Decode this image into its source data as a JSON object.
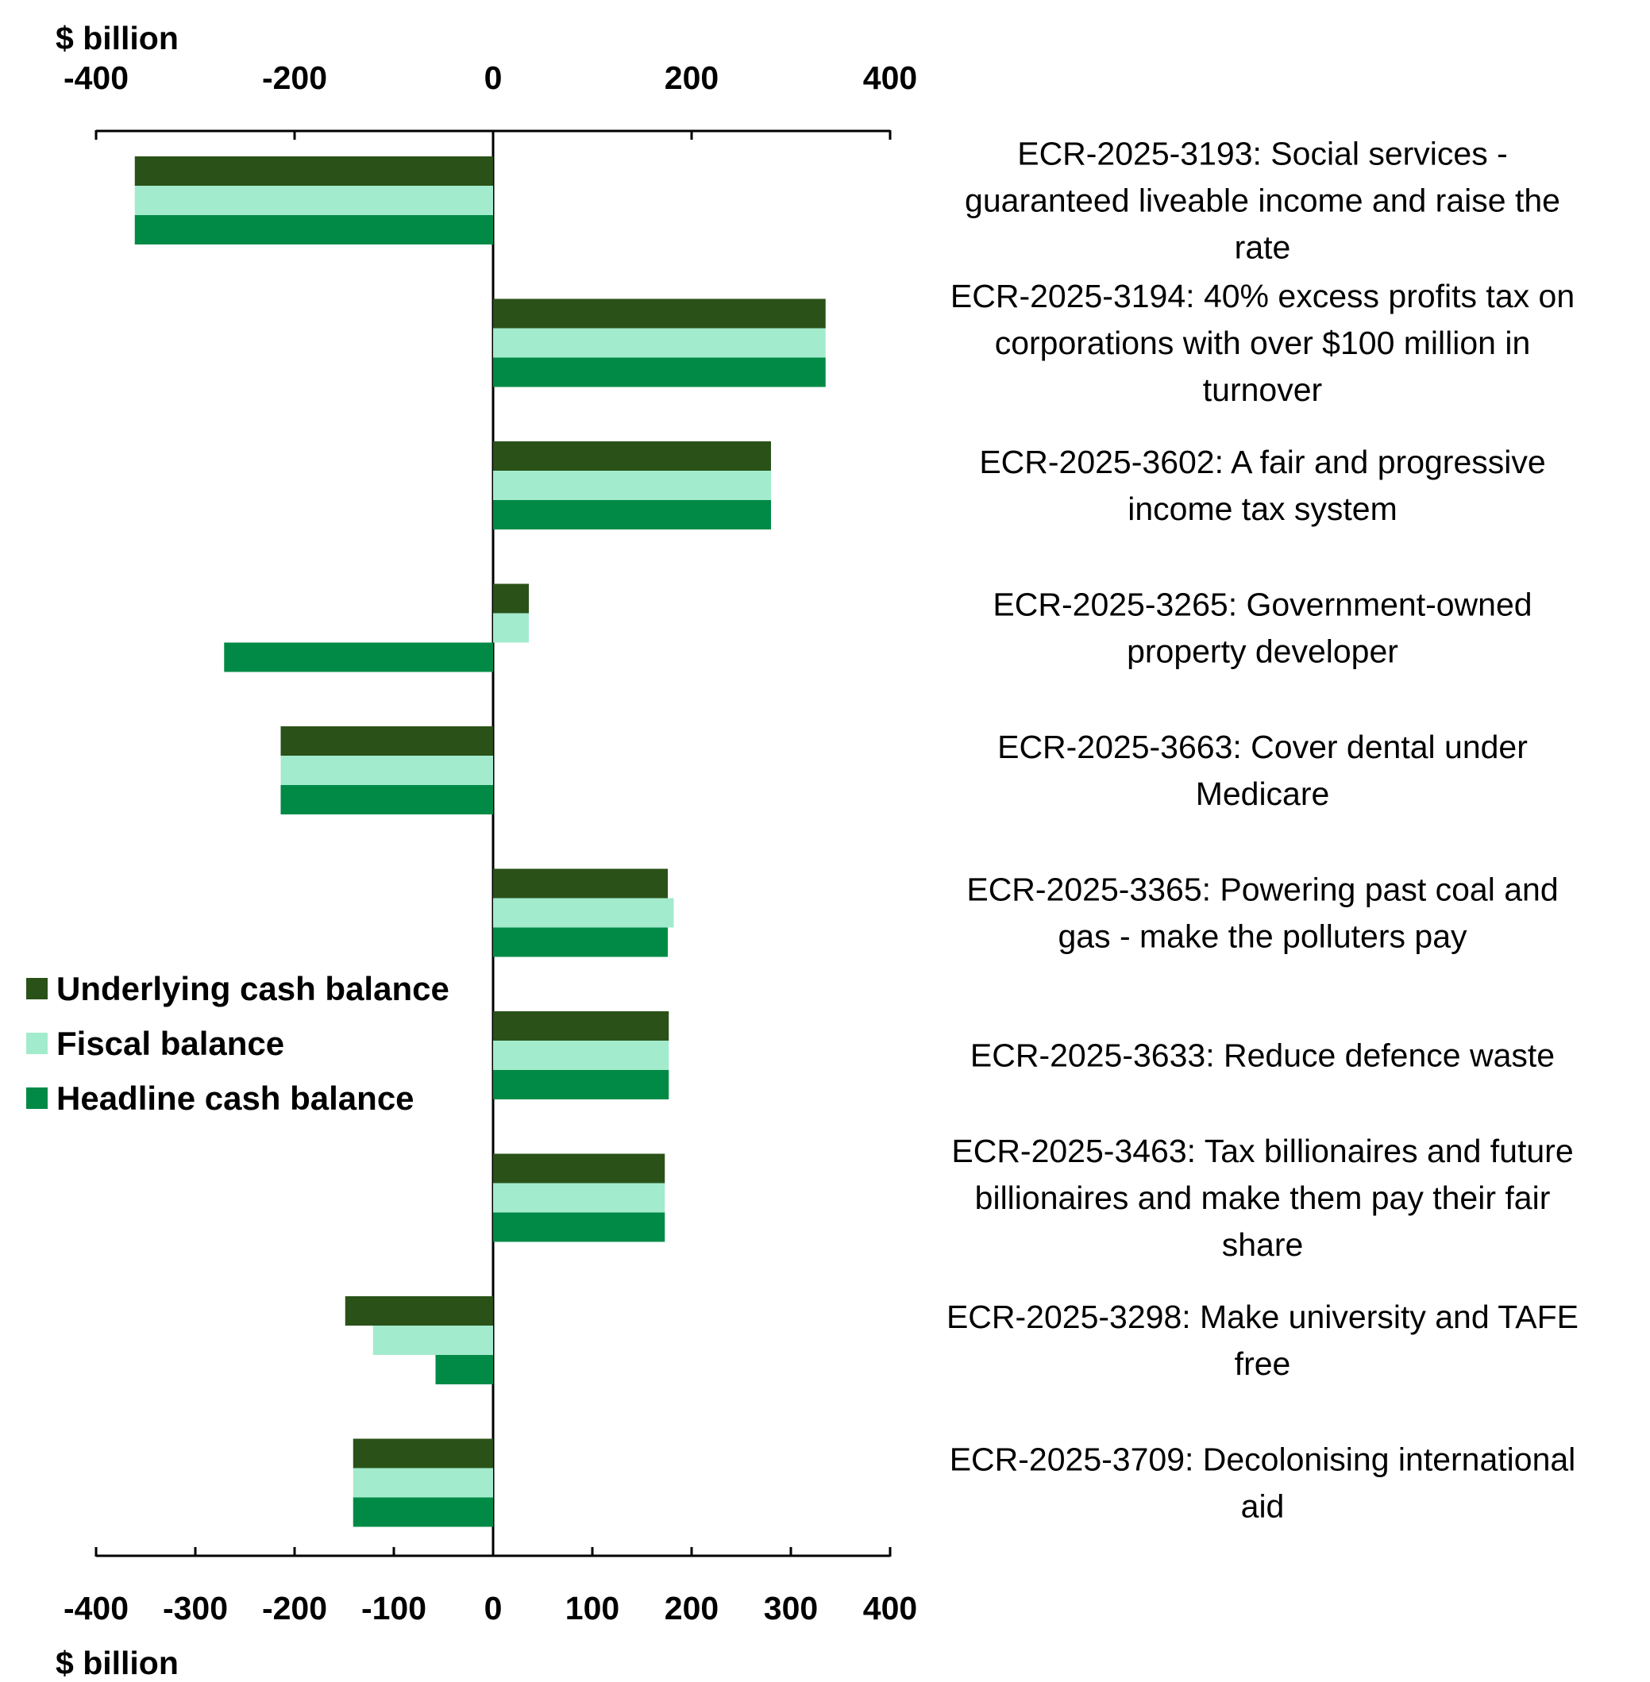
{
  "chart_data": {
    "type": "bar",
    "orientation": "horizontal",
    "unit_label_top": "$ billion",
    "unit_label_bottom": "$ billion",
    "xlim": [
      -400,
      400
    ],
    "top_ticks": [
      "-400",
      "-200",
      "0",
      "200",
      "400"
    ],
    "bottom_ticks": [
      "-400",
      "-300",
      "-200",
      "-100",
      "0",
      "100",
      "200",
      "300",
      "400"
    ],
    "categories": [
      [
        "ECR-2025-3193:  Social services -",
        "guaranteed liveable income and raise the",
        "rate"
      ],
      [
        "ECR-2025-3194:  40% excess profits tax on",
        "corporations with over $100 million in",
        "turnover"
      ],
      [
        "ECR-2025-3602:  A fair and progressive",
        "income tax system"
      ],
      [
        "ECR-2025-3265:  Government-owned",
        "property developer"
      ],
      [
        "ECR-2025-3663:  Cover dental under",
        "Medicare"
      ],
      [
        "ECR-2025-3365:  Powering past coal and",
        "gas - make the polluters pay"
      ],
      [
        "ECR-2025-3633:  Reduce defence waste"
      ],
      [
        "ECR-2025-3463:  Tax billionaires and future",
        "billionaires and make them pay their fair",
        "share"
      ],
      [
        "ECR-2025-3298:  Make university and TAFE",
        "free"
      ],
      [
        "ECR-2025-3709:  Decolonising international",
        "aid"
      ]
    ],
    "series": [
      {
        "name": "Underlying cash balance",
        "color": "#2a5218",
        "values": [
          -361,
          335,
          280,
          36,
          -214,
          176,
          177,
          173,
          -149,
          -141
        ]
      },
      {
        "name": "Fiscal balance",
        "color": "#a3ebcd",
        "values": [
          -361,
          335,
          280,
          36,
          -214,
          182,
          177,
          173,
          -121,
          -141
        ]
      },
      {
        "name": "Headline cash balance",
        "color": "#008a46",
        "values": [
          -361,
          335,
          280,
          -271,
          -214,
          176,
          177,
          173,
          -58,
          -141
        ]
      }
    ],
    "legend_position": "left-middle",
    "grid": false
  }
}
